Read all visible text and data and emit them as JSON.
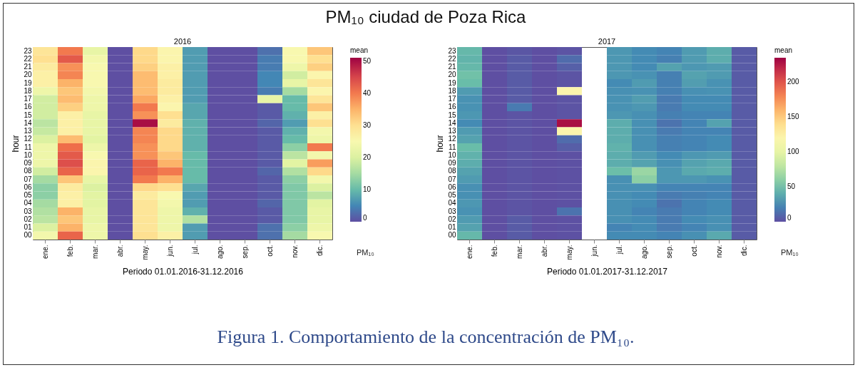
{
  "chart_data": [
    {
      "type": "heatmap",
      "title": "PM₁₀ ciudad de Poza Rica",
      "subtitle": "2016",
      "xlabel": "Periodo 01.01.2016-31.12.2016",
      "ylabel": "hour",
      "legend_title": "mean",
      "clabel": "PM₁₀",
      "clim": [
        0,
        51
      ],
      "cticks": [
        0,
        10,
        20,
        30,
        40,
        50
      ],
      "categories": [
        "ene.",
        "feb.",
        "mar.",
        "abr.",
        "may.",
        "jun.",
        "jul.",
        "ago.",
        "sep.",
        "oct.",
        "nov.",
        "dic."
      ],
      "y_categories": [
        "23",
        "22",
        "21",
        "20",
        "19",
        "18",
        "17",
        "16",
        "15",
        "14",
        "13",
        "12",
        "11",
        "10",
        "09",
        "08",
        "07",
        "06",
        "05",
        "04",
        "03",
        "02",
        "01",
        "00"
      ],
      "cells": [
        [
          29,
          40,
          22,
          0,
          31,
          26,
          7,
          0,
          0,
          3,
          25,
          33
        ],
        [
          30,
          43,
          24,
          0,
          31,
          26,
          7,
          0,
          0,
          4,
          25,
          30
        ],
        [
          28,
          38,
          25,
          0,
          32,
          27,
          7,
          0,
          0,
          4,
          23,
          32
        ],
        [
          27,
          39,
          25,
          0,
          34,
          27,
          7,
          0,
          0,
          5,
          19,
          26
        ],
        [
          27,
          35,
          25,
          0,
          34,
          28,
          7,
          0,
          0,
          5,
          22,
          29
        ],
        [
          23,
          33,
          24,
          0,
          34,
          28,
          7,
          0,
          0,
          4,
          15,
          26
        ],
        [
          19,
          34,
          23,
          0,
          36,
          27,
          7,
          0,
          0,
          22,
          10,
          29
        ],
        [
          19,
          32,
          23,
          0,
          40,
          26,
          8,
          0,
          0,
          1,
          10,
          33
        ],
        [
          19,
          27,
          22,
          0,
          38,
          30,
          8,
          0,
          0,
          1,
          9,
          27
        ],
        [
          17,
          27,
          22,
          0,
          50,
          28,
          9,
          0,
          0,
          2,
          7,
          30
        ],
        [
          18,
          27,
          22,
          0,
          39,
          31,
          9,
          0,
          0,
          1,
          9,
          24
        ],
        [
          20,
          34,
          21,
          0,
          39,
          31,
          9,
          0,
          0,
          1,
          10,
          23
        ],
        [
          23,
          41,
          23,
          0,
          38,
          31,
          9,
          0,
          0,
          1,
          13,
          40
        ],
        [
          23,
          43,
          25,
          0,
          38,
          33,
          10,
          0,
          0,
          1,
          17,
          24
        ],
        [
          23,
          44,
          26,
          0,
          42,
          35,
          10,
          0,
          0,
          1,
          21,
          37
        ],
        [
          19,
          42,
          26,
          0,
          42,
          40,
          10,
          0,
          0,
          2,
          16,
          31
        ],
        [
          15,
          33,
          22,
          0,
          40,
          35,
          10,
          0,
          0,
          1,
          13,
          24
        ],
        [
          13,
          28,
          20,
          0,
          31,
          30,
          8,
          0,
          0,
          1,
          12,
          20
        ],
        [
          13,
          27,
          21,
          0,
          28,
          25,
          7,
          0,
          0,
          1,
          12,
          17
        ],
        [
          15,
          27,
          21,
          0,
          29,
          24,
          7,
          0,
          0,
          2,
          12,
          21
        ],
        [
          16,
          35,
          22,
          0,
          29,
          23,
          9,
          0,
          0,
          1,
          12,
          22
        ],
        [
          17,
          33,
          22,
          0,
          29,
          23,
          16,
          0,
          0,
          1,
          12,
          22
        ],
        [
          20,
          35,
          23,
          0,
          29,
          23,
          7,
          0,
          0,
          3,
          13,
          23
        ],
        [
          24,
          42,
          23,
          0,
          30,
          27,
          7,
          0,
          0,
          3,
          15,
          25
        ]
      ]
    },
    {
      "type": "heatmap",
      "subtitle": "2017",
      "xlabel": "Periodo 01.01.2017-31.12.2017",
      "ylabel": "hour",
      "legend_title": "mean",
      "clabel": "PM₁₀",
      "clim": [
        0,
        235
      ],
      "cticks": [
        0,
        50,
        100,
        150,
        200
      ],
      "annotations": [
        "Figura 1.  Comportamiento de la concentración de PM₁₀."
      ],
      "categories": [
        "ene.",
        "feb.",
        "mar.",
        "abr.",
        "may.",
        "jun.",
        "jul.",
        "ago.",
        "sep.",
        "oct.",
        "nov.",
        "dic."
      ],
      "y_categories": [
        "23",
        "22",
        "21",
        "20",
        "19",
        "18",
        "17",
        "16",
        "15",
        "14",
        "13",
        "12",
        "11",
        "10",
        "09",
        "08",
        "07",
        "06",
        "05",
        "04",
        "03",
        "02",
        "01",
        "00"
      ],
      "cells": [
        [
          45,
          0,
          3,
          0,
          2,
          null,
          30,
          25,
          22,
          32,
          40,
          5
        ],
        [
          43,
          0,
          5,
          0,
          12,
          null,
          30,
          25,
          20,
          32,
          40,
          5
        ],
        [
          45,
          0,
          5,
          0,
          7,
          null,
          30,
          25,
          35,
          30,
          32,
          5
        ],
        [
          50,
          0,
          5,
          0,
          2,
          null,
          30,
          28,
          20,
          35,
          32,
          5
        ],
        [
          47,
          0,
          5,
          0,
          2,
          null,
          25,
          32,
          20,
          33,
          28,
          5
        ],
        [
          32,
          0,
          5,
          0,
          120,
          null,
          27,
          28,
          20,
          27,
          28,
          5
        ],
        [
          28,
          0,
          5,
          0,
          2,
          null,
          28,
          33,
          18,
          25,
          25,
          5
        ],
        [
          28,
          0,
          18,
          0,
          2,
          null,
          28,
          30,
          18,
          25,
          25,
          5
        ],
        [
          30,
          0,
          2,
          0,
          2,
          null,
          30,
          27,
          20,
          22,
          22,
          5
        ],
        [
          25,
          0,
          2,
          0,
          230,
          null,
          40,
          27,
          15,
          22,
          35,
          5
        ],
        [
          32,
          0,
          2,
          0,
          120,
          null,
          40,
          27,
          18,
          22,
          22,
          5
        ],
        [
          35,
          0,
          2,
          0,
          12,
          null,
          40,
          27,
          20,
          22,
          25,
          5
        ],
        [
          47,
          0,
          2,
          0,
          6,
          null,
          42,
          27,
          20,
          22,
          25,
          5
        ],
        [
          42,
          0,
          2,
          0,
          1,
          null,
          40,
          32,
          25,
          30,
          32,
          5
        ],
        [
          40,
          0,
          2,
          0,
          1,
          null,
          40,
          35,
          27,
          35,
          38,
          5
        ],
        [
          35,
          0,
          2,
          0,
          1,
          null,
          48,
          65,
          30,
          38,
          40,
          5
        ],
        [
          32,
          0,
          2,
          0,
          1,
          null,
          27,
          60,
          30,
          30,
          28,
          5
        ],
        [
          27,
          0,
          2,
          0,
          1,
          null,
          27,
          27,
          22,
          22,
          22,
          5
        ],
        [
          27,
          0,
          2,
          0,
          1,
          null,
          27,
          25,
          18,
          20,
          22,
          5
        ],
        [
          30,
          0,
          2,
          0,
          1,
          null,
          27,
          25,
          15,
          22,
          25,
          5
        ],
        [
          28,
          0,
          2,
          0,
          15,
          null,
          27,
          22,
          18,
          22,
          25,
          5
        ],
        [
          32,
          0,
          5,
          0,
          1,
          null,
          27,
          25,
          18,
          25,
          27,
          5
        ],
        [
          35,
          0,
          5,
          0,
          1,
          null,
          22,
          25,
          18,
          22,
          27,
          5
        ],
        [
          45,
          0,
          5,
          0,
          1,
          null,
          25,
          25,
          22,
          27,
          38,
          5
        ]
      ]
    }
  ]
}
